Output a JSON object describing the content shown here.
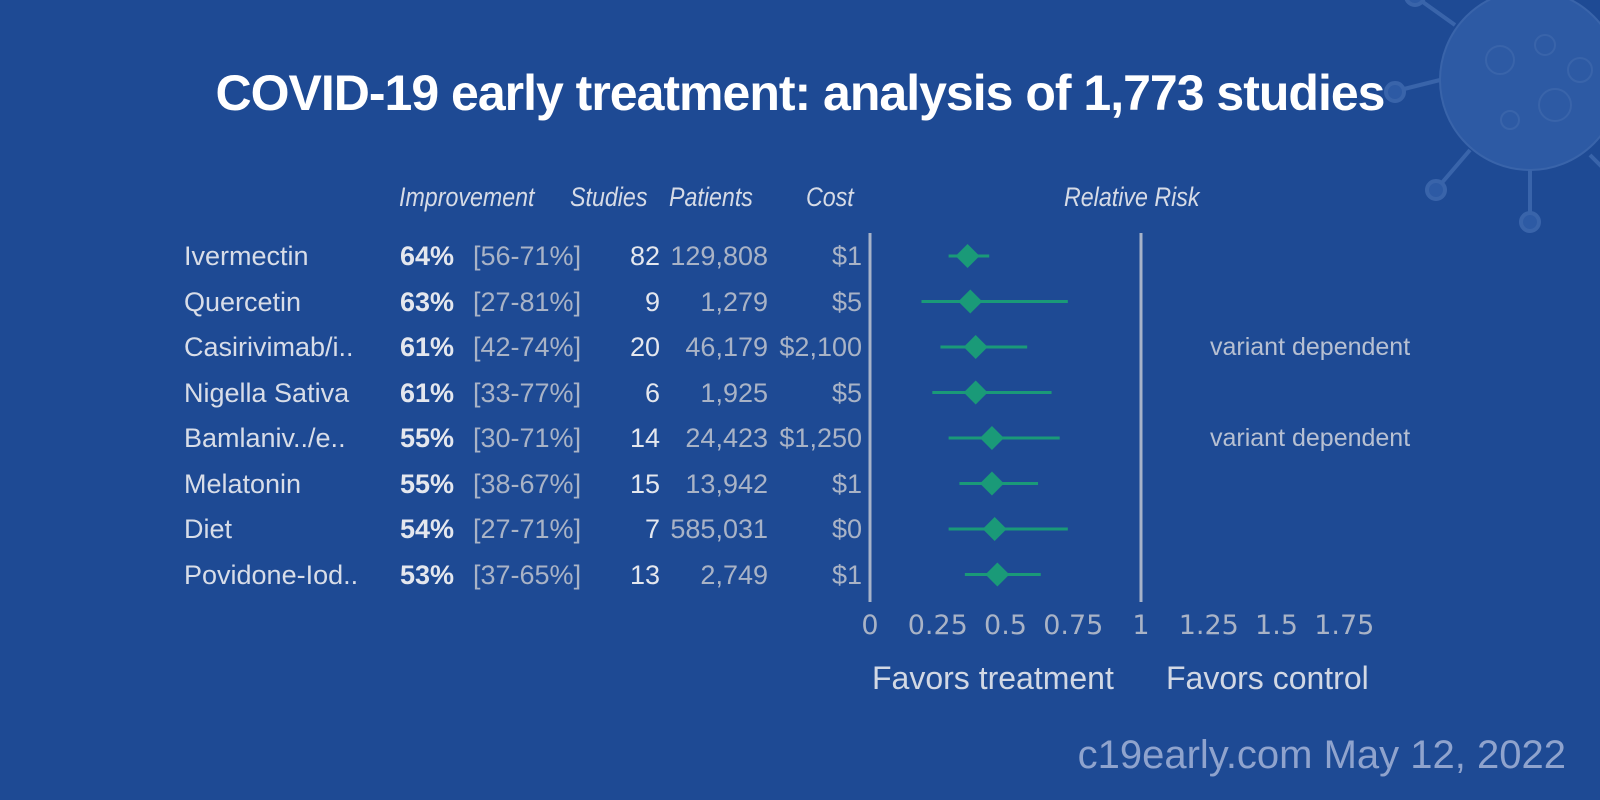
{
  "title": "COVID-19 early treatment: analysis of 1,773 studies",
  "headers": {
    "improvement": "Improvement",
    "studies": "Studies",
    "patients": "Patients",
    "cost": "Cost",
    "relative_risk": "Relative Risk"
  },
  "rows": [
    {
      "name": "Ivermectin",
      "improvement": "64%",
      "ci": "[56-71%]",
      "studies": "82",
      "patients": "129,808",
      "cost": "$1",
      "note": ""
    },
    {
      "name": "Quercetin",
      "improvement": "63%",
      "ci": "[27-81%]",
      "studies": "9",
      "patients": "1,279",
      "cost": "$5",
      "note": ""
    },
    {
      "name": "Casirivimab/i..",
      "improvement": "61%",
      "ci": "[42-74%]",
      "studies": "20",
      "patients": "46,179",
      "cost": "$2,100",
      "note": "variant dependent"
    },
    {
      "name": "Nigella Sativa",
      "improvement": "61%",
      "ci": "[33-77%]",
      "studies": "6",
      "patients": "1,925",
      "cost": "$5",
      "note": ""
    },
    {
      "name": "Bamlaniv../e..",
      "improvement": "55%",
      "ci": "[30-71%]",
      "studies": "14",
      "patients": "24,423",
      "cost": "$1,250",
      "note": "variant dependent"
    },
    {
      "name": "Melatonin",
      "improvement": "55%",
      "ci": "[38-67%]",
      "studies": "15",
      "patients": "13,942",
      "cost": "$1",
      "note": ""
    },
    {
      "name": "Diet",
      "improvement": "54%",
      "ci": "[27-71%]",
      "studies": "7",
      "patients": "585,031",
      "cost": "$0",
      "note": ""
    },
    {
      "name": "Povidone-Iod..",
      "improvement": "53%",
      "ci": "[37-65%]",
      "studies": "13",
      "patients": "2,749",
      "cost": "$1",
      "note": ""
    }
  ],
  "axis": {
    "tick_labels": [
      "0",
      "0.25",
      "0.5",
      "0.75",
      "1",
      "1.25",
      "1.5",
      "1.75"
    ],
    "favors_treatment": "Favors treatment",
    "favors_control": "Favors control"
  },
  "watermark": "c19early.com May 12, 2022",
  "colors": {
    "background": "#1e4a94",
    "marker": "#1a9a78",
    "axis_line": "#a7b3c9"
  },
  "chart_data": {
    "type": "forest",
    "title": "COVID-19 early treatment: analysis of 1,773 studies",
    "xlabel": "Relative Risk",
    "xlim": [
      0,
      1.75
    ],
    "x_ticks": [
      0,
      0.25,
      0.5,
      0.75,
      1,
      1.25,
      1.5,
      1.75
    ],
    "reference_line": 1,
    "categories": [
      "Ivermectin",
      "Quercetin",
      "Casirivimab/i..",
      "Nigella Sativa",
      "Bamlaniv../e..",
      "Melatonin",
      "Diet",
      "Povidone-Iod.."
    ],
    "rr": [
      0.36,
      0.37,
      0.39,
      0.39,
      0.45,
      0.45,
      0.46,
      0.47
    ],
    "ci_low": [
      0.29,
      0.19,
      0.26,
      0.23,
      0.29,
      0.33,
      0.29,
      0.35
    ],
    "ci_high": [
      0.44,
      0.73,
      0.58,
      0.67,
      0.7,
      0.62,
      0.73,
      0.63
    ]
  }
}
